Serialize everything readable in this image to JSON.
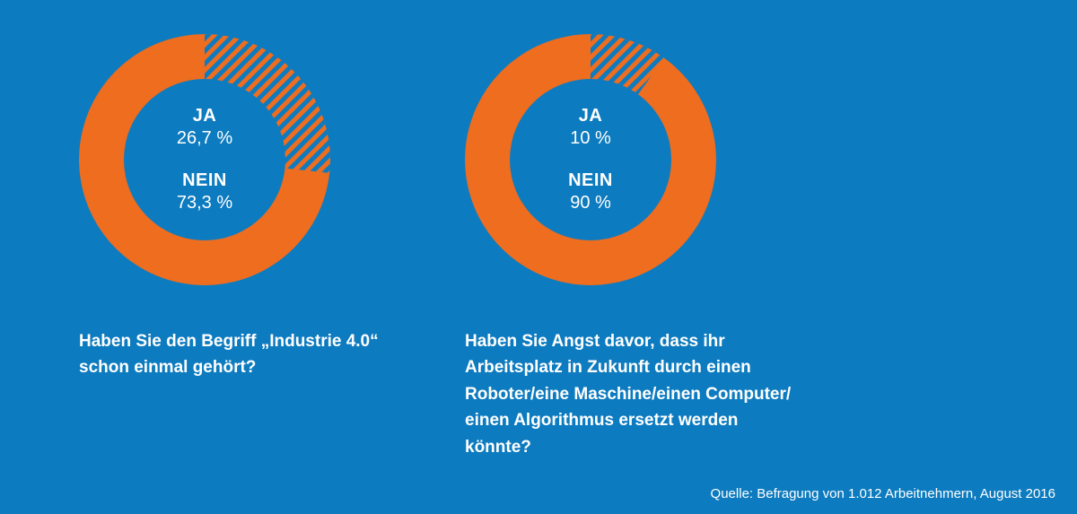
{
  "background_color": "#0d7bbf",
  "source_text": "Quelle: Befragung von 1.012 Arbeitnehmern, August 2016",
  "charts": [
    {
      "type": "donut",
      "question": "Haben Sie den Begriff „Industrie 4.0“ schon einmal gehört?",
      "ja_label": "JA",
      "ja_value_text": "26,7 %",
      "ja_percent": 26.7,
      "nein_label": "NEIN",
      "nein_value_text": "73,3 %",
      "nein_percent": 73.3,
      "nein_color": "#ee6d1f",
      "ja_stripe_color1": "#ee6d1f",
      "ja_stripe_color2": "#0d7bbf",
      "outer_radius": 140,
      "inner_radius": 90,
      "start_angle_deg": 0,
      "label_fontsize": 20,
      "text_color": "#ffffff"
    },
    {
      "type": "donut",
      "question": "Haben Sie Angst davor, dass ihr Arbeitsplatz in Zukunft durch einen Roboter/eine Maschine/einen Computer/ einen Algorithmus ersetzt werden könnte?",
      "ja_label": "JA",
      "ja_value_text": "10 %",
      "ja_percent": 10.0,
      "nein_label": "NEIN",
      "nein_value_text": "90 %",
      "nein_percent": 90.0,
      "nein_color": "#ee6d1f",
      "ja_stripe_color1": "#ee6d1f",
      "ja_stripe_color2": "#0d7bbf",
      "outer_radius": 140,
      "inner_radius": 90,
      "start_angle_deg": 0,
      "label_fontsize": 20,
      "text_color": "#ffffff"
    }
  ]
}
